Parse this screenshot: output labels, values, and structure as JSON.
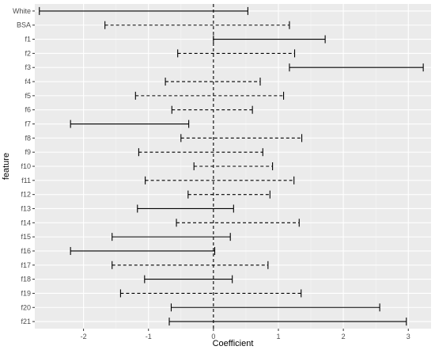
{
  "chart_data": {
    "type": "errorbar",
    "xlabel": "Coefficient",
    "ylabel": "feature",
    "xlim": [
      -2.75,
      3.35
    ],
    "x_ticks": [
      -2,
      -1,
      0,
      1,
      2,
      3
    ],
    "grid": true,
    "reference_line": {
      "x": 0,
      "style": "dashed"
    },
    "colors": {
      "panel": "#ebebeb",
      "grid_major": "#ffffff",
      "grid_minor": "#f4f4f4",
      "bar": "#000000",
      "tick_text": "#4d4d4d"
    },
    "features": [
      {
        "name": "White",
        "low": -2.68,
        "high": 0.53,
        "significant": true
      },
      {
        "name": "BSA",
        "low": -1.67,
        "high": 1.17,
        "significant": false
      },
      {
        "name": "f1",
        "low": 0.0,
        "high": 1.72,
        "significant": true
      },
      {
        "name": "f2",
        "low": -0.55,
        "high": 1.25,
        "significant": false
      },
      {
        "name": "f3",
        "low": 1.17,
        "high": 3.23,
        "significant": true
      },
      {
        "name": "f4",
        "low": -0.74,
        "high": 0.72,
        "significant": false
      },
      {
        "name": "f5",
        "low": -1.2,
        "high": 1.08,
        "significant": false
      },
      {
        "name": "f6",
        "low": -0.64,
        "high": 0.6,
        "significant": false
      },
      {
        "name": "f7",
        "low": -2.2,
        "high": -0.38,
        "significant": true
      },
      {
        "name": "f8",
        "low": -0.5,
        "high": 1.36,
        "significant": false
      },
      {
        "name": "f9",
        "low": -1.15,
        "high": 0.76,
        "significant": false
      },
      {
        "name": "f10",
        "low": -0.3,
        "high": 0.91,
        "significant": false
      },
      {
        "name": "f11",
        "low": -1.05,
        "high": 1.24,
        "significant": false
      },
      {
        "name": "f12",
        "low": -0.39,
        "high": 0.87,
        "significant": false
      },
      {
        "name": "f13",
        "low": -1.17,
        "high": 0.31,
        "significant": true
      },
      {
        "name": "f14",
        "low": -0.57,
        "high": 1.32,
        "significant": false
      },
      {
        "name": "f15",
        "low": -1.56,
        "high": 0.26,
        "significant": true
      },
      {
        "name": "f16",
        "low": -2.2,
        "high": 0.02,
        "significant": true
      },
      {
        "name": "f17",
        "low": -1.56,
        "high": 0.84,
        "significant": false
      },
      {
        "name": "f18",
        "low": -1.06,
        "high": 0.29,
        "significant": true
      },
      {
        "name": "f19",
        "low": -1.43,
        "high": 1.35,
        "significant": false
      },
      {
        "name": "f20",
        "low": -0.65,
        "high": 2.56,
        "significant": true
      },
      {
        "name": "f21",
        "low": -0.68,
        "high": 2.97,
        "significant": true
      }
    ]
  }
}
